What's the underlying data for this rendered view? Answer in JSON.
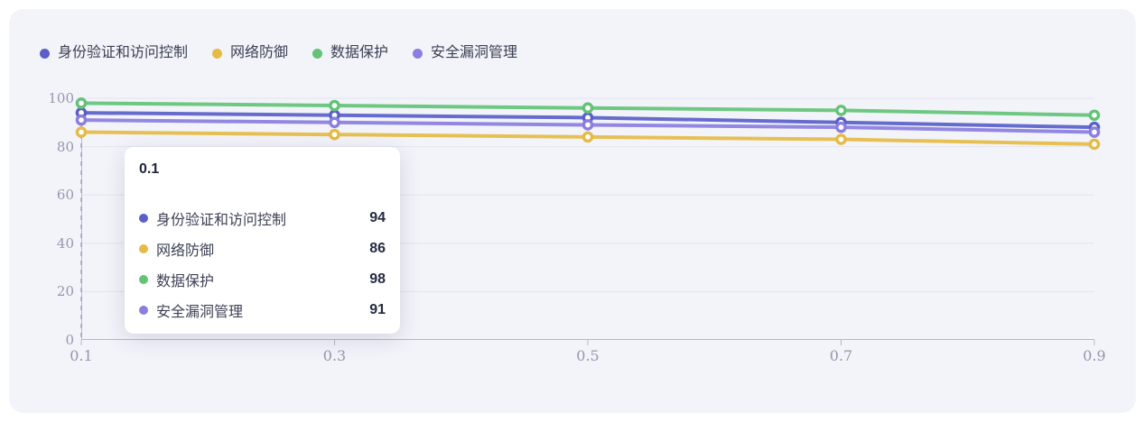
{
  "panel": {
    "background": "#f3f4fa"
  },
  "colors": {
    "grid": "#e3e5ee",
    "axis": "#b4b8c8",
    "dashed_guide": "#9aa0b2",
    "axis_label": "#9298ad"
  },
  "legend": [
    {
      "label": "身份验证和访问控制",
      "color": "#5a5fc9"
    },
    {
      "label": "网络防御",
      "color": "#e6bb45"
    },
    {
      "label": "数据保护",
      "color": "#63c377"
    },
    {
      "label": "安全漏洞管理",
      "color": "#8a7ee0"
    }
  ],
  "tooltip": {
    "title": "0.1",
    "rows": [
      {
        "label": "身份验证和访问控制",
        "value": "94",
        "color": "#5a5fc9"
      },
      {
        "label": "网络防御",
        "value": "86",
        "color": "#e6bb45"
      },
      {
        "label": "数据保护",
        "value": "98",
        "color": "#63c377"
      },
      {
        "label": "安全漏洞管理",
        "value": "91",
        "color": "#8a7ee0"
      }
    ]
  },
  "chart_data": {
    "type": "line",
    "x": [
      "0.1",
      "0.3",
      "0.5",
      "0.7",
      "0.9"
    ],
    "series": [
      {
        "name": "身份验证和访问控制",
        "color": "#5a5fc9",
        "values": [
          94,
          93,
          92,
          90,
          88
        ]
      },
      {
        "name": "网络防御",
        "color": "#e6bb45",
        "values": [
          86,
          85,
          84,
          83,
          81
        ]
      },
      {
        "name": "数据保护",
        "color": "#63c377",
        "values": [
          98,
          97,
          96,
          95,
          93
        ]
      },
      {
        "name": "安全漏洞管理",
        "color": "#8a7ee0",
        "values": [
          91,
          90,
          89,
          88,
          86
        ]
      }
    ],
    "ylim": [
      0,
      100
    ],
    "y_ticks": [
      0,
      20,
      40,
      60,
      80,
      100
    ],
    "grid": true,
    "legend_position": "top-left",
    "highlight_x": "0.1"
  }
}
